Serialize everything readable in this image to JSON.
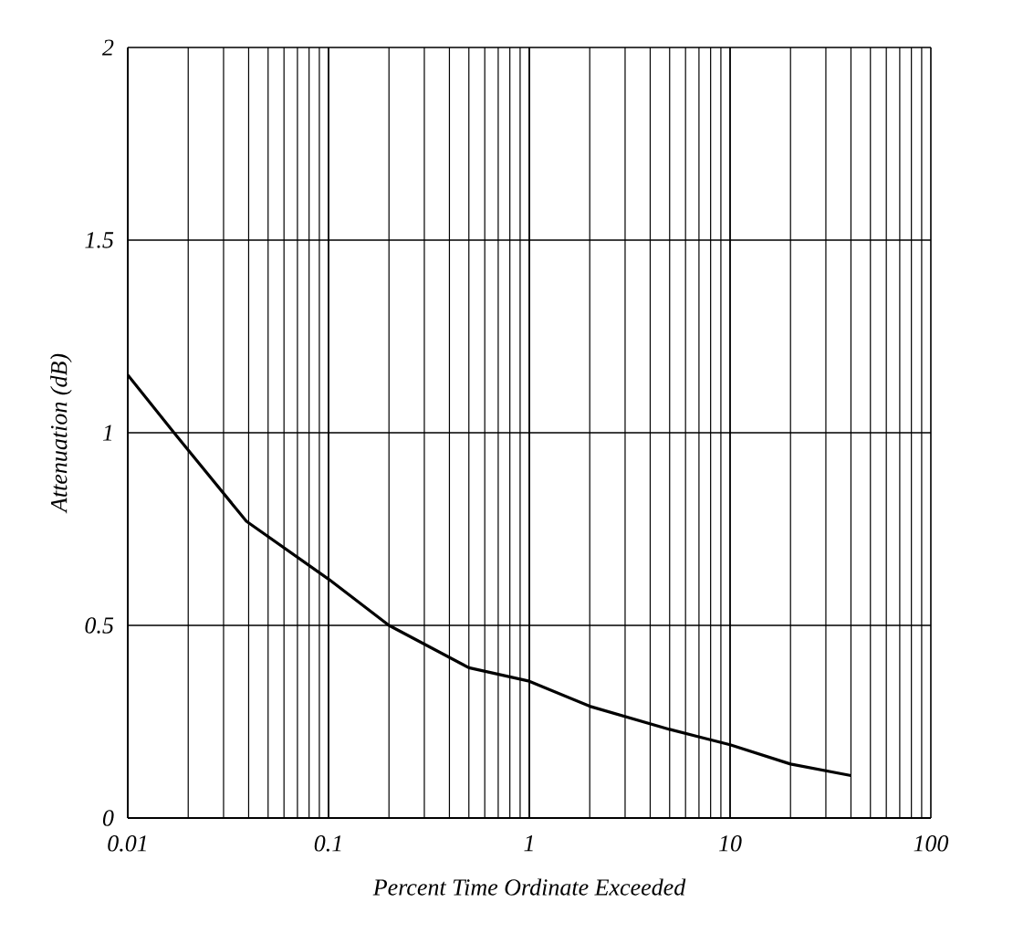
{
  "chart_data": {
    "type": "line",
    "xlabel": "Percent Time Ordinate Exceeded",
    "ylabel": "Attenuation (dB)",
    "log": "x",
    "grid": true,
    "xlim": [
      0.01,
      100
    ],
    "xticks": [
      0.01,
      0.1,
      1,
      10,
      100
    ],
    "ylim": [
      0,
      2
    ],
    "yticks": [
      0,
      0.5,
      1,
      1.5,
      2
    ],
    "series": [
      {
        "color": "#000000",
        "x": [
          0.01,
          0.017,
          0.039,
          0.1,
          0.2,
          0.5,
          1,
          2,
          5,
          10,
          20,
          40
        ],
        "values": [
          1.15,
          1.0,
          0.77,
          0.62,
          0.5,
          0.39,
          0.355,
          0.29,
          0.23,
          0.19,
          0.14,
          0.11
        ]
      }
    ]
  }
}
